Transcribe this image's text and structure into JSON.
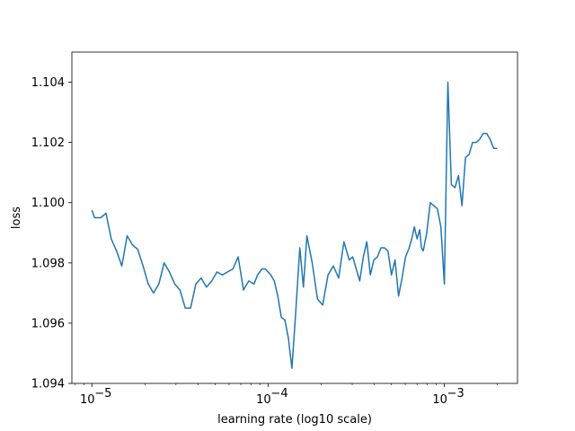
{
  "chart_data": {
    "type": "line",
    "title": "",
    "xlabel": "learning rate (log10 scale)",
    "ylabel": "loss",
    "xscale": "log",
    "xlim": [
      7.7e-06,
      0.0026
    ],
    "ylim": [
      1.094,
      1.105
    ],
    "grid": false,
    "line_color": "#1f77b4",
    "x_ticks": [
      {
        "value": 1e-05,
        "base": "10",
        "exp": "−5"
      },
      {
        "value": 0.0001,
        "base": "10",
        "exp": "−4"
      },
      {
        "value": 0.001,
        "base": "10",
        "exp": "−3"
      }
    ],
    "y_ticks": [
      {
        "value": 1.094,
        "label": "1.094"
      },
      {
        "value": 1.096,
        "label": "1.096"
      },
      {
        "value": 1.098,
        "label": "1.098"
      },
      {
        "value": 1.1,
        "label": "1.100"
      },
      {
        "value": 1.102,
        "label": "1.102"
      },
      {
        "value": 1.104,
        "label": "1.104"
      }
    ],
    "series": [
      {
        "log10_x": [
          -5.0,
          -4.985,
          -4.95,
          -4.92,
          -4.89,
          -4.86,
          -4.83,
          -4.8,
          -4.77,
          -4.74,
          -4.71,
          -4.68,
          -4.65,
          -4.62,
          -4.59,
          -4.56,
          -4.53,
          -4.5,
          -4.47,
          -4.44,
          -4.41,
          -4.38,
          -4.35,
          -4.32,
          -4.29,
          -4.26,
          -4.23,
          -4.2,
          -4.17,
          -4.14,
          -4.11,
          -4.08,
          -4.06,
          -4.035,
          -4.015,
          -4.0,
          -3.985,
          -3.965,
          -3.945,
          -3.925,
          -3.905,
          -3.885,
          -3.865,
          -3.845,
          -3.82,
          -3.8,
          -3.78,
          -3.75,
          -3.72,
          -3.69,
          -3.66,
          -3.63,
          -3.6,
          -3.57,
          -3.54,
          -3.52,
          -3.5,
          -3.48,
          -3.46,
          -3.44,
          -3.42,
          -3.4,
          -3.38,
          -3.36,
          -3.34,
          -3.32,
          -3.3,
          -3.28,
          -3.26,
          -3.24,
          -3.22,
          -3.2,
          -3.185,
          -3.17,
          -3.155,
          -3.14,
          -3.13,
          -3.12,
          -3.1,
          -3.09,
          -3.08,
          -3.06,
          -3.04,
          -3.02,
          -3.0,
          -2.98,
          -2.96,
          -2.94,
          -2.92,
          -2.9,
          -2.88,
          -2.86,
          -2.84,
          -2.82,
          -2.8,
          -2.78,
          -2.76,
          -2.74,
          -2.72,
          -2.7
        ],
        "y": [
          1.09975,
          1.0995,
          1.0995,
          1.09965,
          1.0988,
          1.0984,
          1.0979,
          1.0989,
          1.0986,
          1.09845,
          1.0979,
          1.0973,
          1.097,
          1.0973,
          1.098,
          1.0977,
          1.0973,
          1.0971,
          1.0965,
          1.0965,
          1.0973,
          1.0975,
          1.0972,
          1.0974,
          1.0977,
          1.0976,
          1.0977,
          1.0978,
          1.0982,
          1.0971,
          1.0974,
          1.0973,
          1.0976,
          1.0978,
          1.0978,
          1.0977,
          1.0976,
          1.0974,
          1.0969,
          1.0962,
          1.0961,
          1.0955,
          1.0945,
          1.0962,
          1.0985,
          1.0972,
          1.0989,
          1.098,
          1.0968,
          1.0966,
          1.0976,
          1.0979,
          1.0975,
          1.0987,
          1.0981,
          1.0982,
          1.0978,
          1.0974,
          1.0982,
          1.0987,
          1.0976,
          1.0981,
          1.0982,
          1.0985,
          1.0985,
          1.0984,
          1.0976,
          1.0981,
          1.0969,
          1.0975,
          1.0982,
          1.0985,
          1.0988,
          1.0992,
          1.0988,
          1.0991,
          1.0985,
          1.0984,
          1.099,
          1.0995,
          1.1,
          1.0999,
          1.0998,
          1.0992,
          1.0973,
          1.104,
          1.1006,
          1.1005,
          1.1009,
          1.0999,
          1.1015,
          1.1016,
          1.102,
          1.102,
          1.1021,
          1.1023,
          1.1023,
          1.1021,
          1.1018,
          1.1018
        ]
      }
    ]
  }
}
